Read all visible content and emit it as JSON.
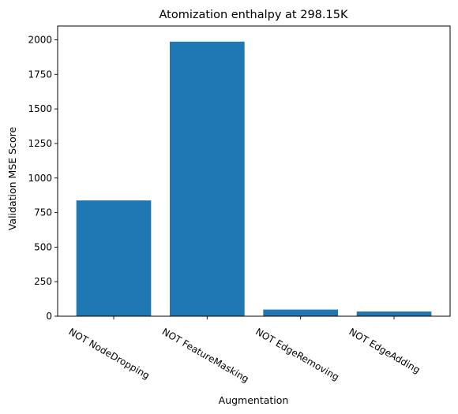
{
  "chart_data": {
    "type": "bar",
    "title": "Atomization enthalpy at 298.15K",
    "xlabel": "Augmentation",
    "ylabel": "Validation MSE Score",
    "categories": [
      "NOT NodeDropping",
      "NOT FeatureMasking",
      "NOT EdgeRemoving",
      "NOT EdgeAdding"
    ],
    "values": [
      838,
      1987,
      48,
      34
    ],
    "ylim": [
      0,
      2100
    ],
    "yticks": [
      0,
      250,
      500,
      750,
      1000,
      1250,
      1500,
      1750,
      2000
    ],
    "bar_color": "#1f77b4",
    "grid": false,
    "legend": "none"
  }
}
